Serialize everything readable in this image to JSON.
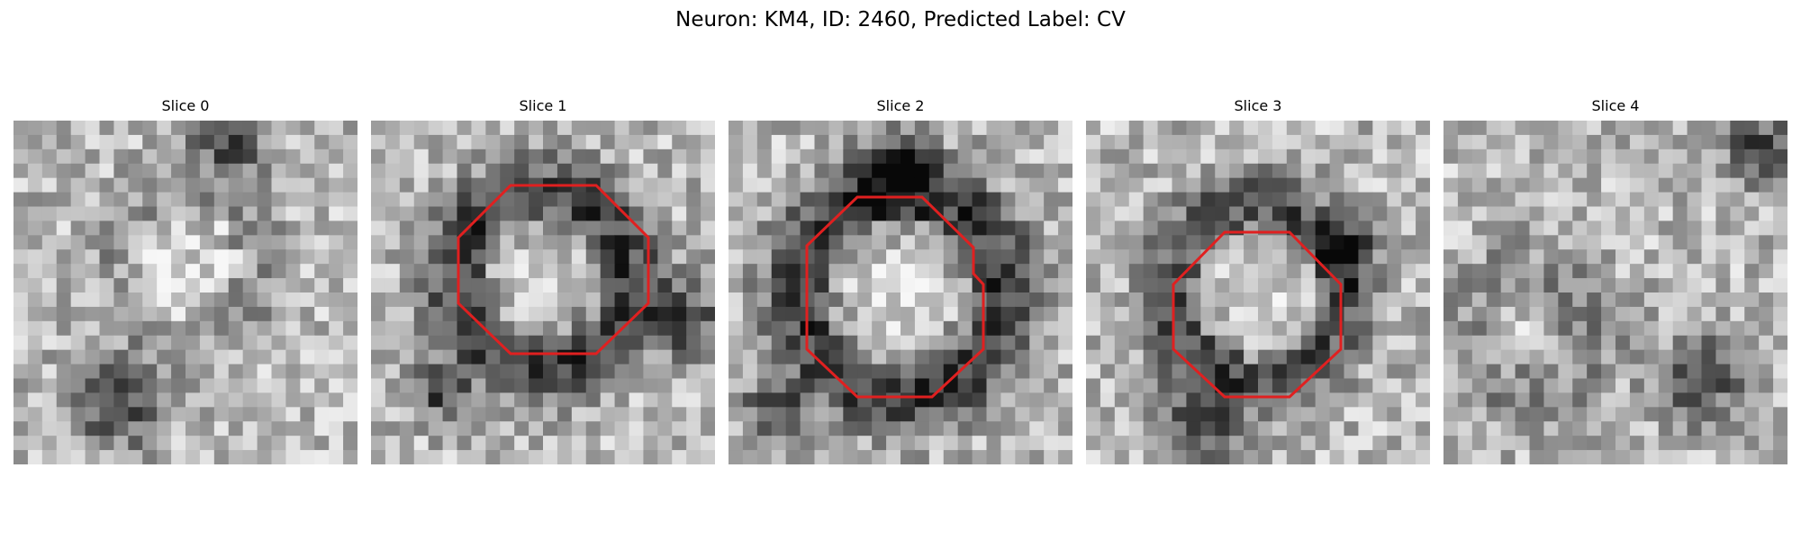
{
  "figure": {
    "title": "Neuron: KM4, ID: 2460, Predicted Label: CV",
    "contour_color": "#e02020",
    "panels": [
      {
        "title": "Slice 0",
        "has_contour": false,
        "seed": 11,
        "ring_strength": 0.25,
        "image_description_style": "grayscale EM patch"
      },
      {
        "title": "Slice 1",
        "has_contour": true,
        "seed": 23,
        "ring_strength": 0.85
      },
      {
        "title": "Slice 2",
        "has_contour": true,
        "seed": 37,
        "ring_strength": 0.9
      },
      {
        "title": "Slice 3",
        "has_contour": true,
        "seed": 41,
        "ring_strength": 0.75
      },
      {
        "title": "Slice 4",
        "has_contour": false,
        "seed": 53,
        "ring_strength": 0.3
      }
    ]
  }
}
